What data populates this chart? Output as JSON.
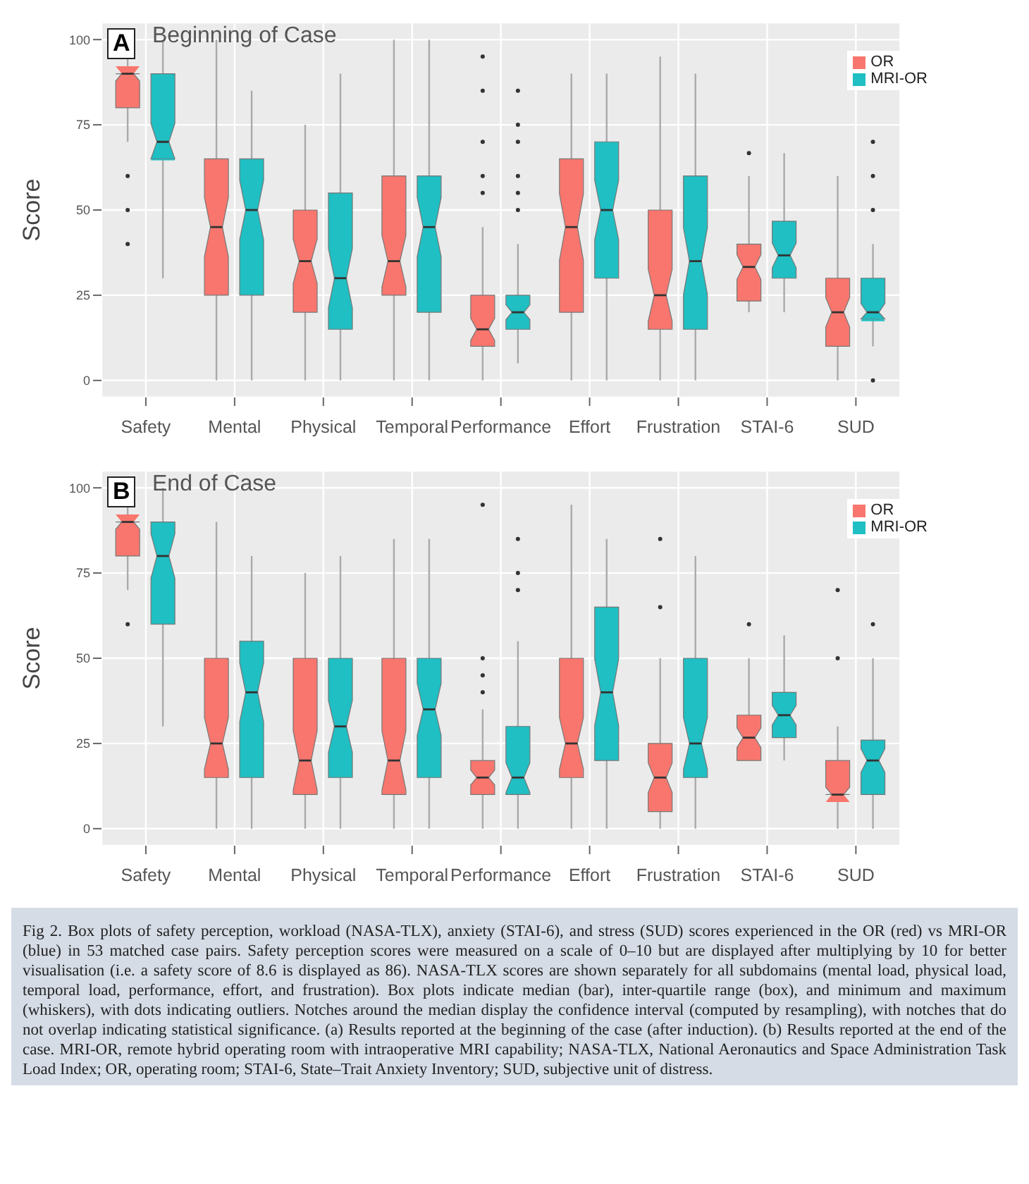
{
  "chart_data": [
    {
      "type": "box",
      "title": "Beginning of Case",
      "annotations": [
        "A"
      ],
      "ylabel": "Score",
      "categories": [
        "Safety",
        "Mental",
        "Physical",
        "Temporal",
        "Performance",
        "Effort",
        "Frustration",
        "STAI-6",
        "SUD"
      ],
      "ylim": [
        -5,
        105
      ],
      "yticks": [
        0,
        25,
        50,
        75,
        100
      ],
      "grid": true,
      "legend": "top right",
      "series": [
        {
          "name": "OR",
          "color": "#f8766d",
          "boxes": [
            {
              "low": 70,
              "q1": 80,
              "median": 90,
              "q3": 90,
              "high": 100,
              "outliers": [
                60,
                50,
                40
              ]
            },
            {
              "low": 0,
              "q1": 25,
              "median": 45,
              "q3": 65,
              "high": 100
            },
            {
              "low": 0,
              "q1": 20,
              "median": 35,
              "q3": 50,
              "high": 75
            },
            {
              "low": 0,
              "q1": 25,
              "median": 35,
              "q3": 60,
              "high": 100
            },
            {
              "low": 0,
              "q1": 10,
              "median": 15,
              "q3": 25,
              "high": 45,
              "outliers": [
                95,
                85,
                70,
                60,
                55
              ]
            },
            {
              "low": 0,
              "q1": 20,
              "median": 45,
              "q3": 65,
              "high": 90
            },
            {
              "low": 0,
              "q1": 15,
              "median": 25,
              "q3": 50,
              "high": 95
            },
            {
              "low": 20,
              "q1": 23.3,
              "median": 33.3,
              "q3": 40,
              "high": 60,
              "outliers": [
                66.7
              ]
            },
            {
              "low": 0,
              "q1": 10,
              "median": 20,
              "q3": 30,
              "high": 60
            }
          ]
        },
        {
          "name": "MRI-OR",
          "color": "#1fbfc3",
          "boxes": [
            {
              "low": 30,
              "q1": 65,
              "median": 70,
              "q3": 90,
              "high": 100
            },
            {
              "low": 0,
              "q1": 25,
              "median": 50,
              "q3": 65,
              "high": 85
            },
            {
              "low": 0,
              "q1": 15,
              "median": 30,
              "q3": 55,
              "high": 90
            },
            {
              "low": 0,
              "q1": 20,
              "median": 45,
              "q3": 60,
              "high": 100
            },
            {
              "low": 5,
              "q1": 15,
              "median": 20,
              "q3": 25,
              "high": 40,
              "outliers": [
                85,
                75,
                70,
                60,
                55,
                50
              ]
            },
            {
              "low": 0,
              "q1": 30,
              "median": 50,
              "q3": 70,
              "high": 90
            },
            {
              "low": 0,
              "q1": 15,
              "median": 35,
              "q3": 60,
              "high": 90
            },
            {
              "low": 20,
              "q1": 30,
              "median": 36.7,
              "q3": 46.7,
              "high": 66.7
            },
            {
              "low": 10,
              "q1": 18,
              "median": 20,
              "q3": 30,
              "high": 40,
              "outliers": [
                70,
                60,
                50,
                0
              ]
            }
          ]
        }
      ]
    },
    {
      "type": "box",
      "title": "End of Case",
      "annotations": [
        "B",
        "Fig 2. Box plots of safety perception, workload (NASA-TLX), anxiety (STAI-6), and stress (SUD) scores experienced in the OR (red) vs MRI-OR (blue) in 53 matched case pairs. Safety perception scores were measured on a scale of 0–10 but are displayed after multiplying by 10 for better visualisation (i.e. a safety score of 8.6 is displayed as 86). NASA-TLX scores are shown separately for all subdomains (mental load, physical load, temporal load, performance, effort, and frustration). Box plots indicate median (bar), inter-quartile range (box), and minimum and maximum (whiskers), with dots indicating outliers. Notches around the median display the confidence interval (computed by resampling), with notches that do not overlap indicating statistical significance. (a) Results reported at the beginning of the case (after induction). (b) Results reported at the end of the case. MRI-OR, remote hybrid operating room with intraoperative MRI capability; NASA-TLX, National Aeronautics and Space Administration Task Load Index; OR, operating room; STAI-6, State–Trait Anxiety Inventory; SUD, subjective unit of distress."
      ],
      "ylabel": "Score",
      "categories": [
        "Safety",
        "Mental",
        "Physical",
        "Temporal",
        "Performance",
        "Effort",
        "Frustration",
        "STAI-6",
        "SUD"
      ],
      "ylim": [
        -5,
        105
      ],
      "yticks": [
        0,
        25,
        50,
        75,
        100
      ],
      "grid": true,
      "legend": "top right",
      "series": [
        {
          "name": "OR",
          "color": "#f8766d",
          "boxes": [
            {
              "low": 70,
              "q1": 80,
              "median": 90,
              "q3": 90,
              "high": 100,
              "outliers": [
                60
              ]
            },
            {
              "low": 0,
              "q1": 15,
              "median": 25,
              "q3": 50,
              "high": 90
            },
            {
              "low": 0,
              "q1": 10,
              "median": 20,
              "q3": 50,
              "high": 75
            },
            {
              "low": 0,
              "q1": 10,
              "median": 20,
              "q3": 50,
              "high": 85
            },
            {
              "low": 0,
              "q1": 10,
              "median": 15,
              "q3": 20,
              "high": 35,
              "outliers": [
                95,
                50,
                45,
                40
              ]
            },
            {
              "low": 0,
              "q1": 15,
              "median": 25,
              "q3": 50,
              "high": 95
            },
            {
              "low": 0,
              "q1": 5,
              "median": 15,
              "q3": 25,
              "high": 50,
              "outliers": [
                85,
                65
              ]
            },
            {
              "low": 20,
              "q1": 20,
              "median": 26.7,
              "q3": 33.3,
              "high": 50,
              "outliers": [
                60
              ]
            },
            {
              "low": 0,
              "q1": 10,
              "median": 10,
              "q3": 20,
              "high": 30,
              "outliers": [
                70,
                50
              ]
            }
          ]
        },
        {
          "name": "MRI-OR",
          "color": "#1fbfc3",
          "boxes": [
            {
              "low": 30,
              "q1": 60,
              "median": 80,
              "q3": 90,
              "high": 100
            },
            {
              "low": 0,
              "q1": 15,
              "median": 40,
              "q3": 55,
              "high": 80
            },
            {
              "low": 0,
              "q1": 15,
              "median": 30,
              "q3": 50,
              "high": 80
            },
            {
              "low": 0,
              "q1": 15,
              "median": 35,
              "q3": 50,
              "high": 85
            },
            {
              "low": 0,
              "q1": 10,
              "median": 15,
              "q3": 30,
              "high": 55,
              "outliers": [
                85,
                75,
                70
              ]
            },
            {
              "low": 0,
              "q1": 20,
              "median": 40,
              "q3": 65,
              "high": 85
            },
            {
              "low": 0,
              "q1": 15,
              "median": 25,
              "q3": 50,
              "high": 80
            },
            {
              "low": 20,
              "q1": 26.7,
              "median": 33.3,
              "q3": 40,
              "high": 56.7
            },
            {
              "low": 0,
              "q1": 10,
              "median": 20,
              "q3": 26,
              "high": 50,
              "outliers": [
                60
              ]
            }
          ]
        }
      ]
    }
  ]
}
